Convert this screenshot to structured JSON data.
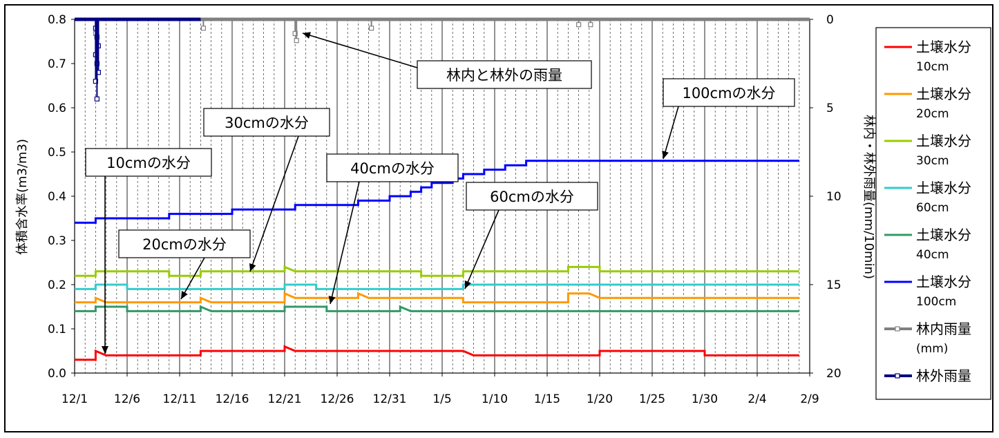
{
  "chart_data": {
    "type": "line",
    "title": "",
    "x_ticks": [
      "12/1",
      "12/6",
      "12/11",
      "12/16",
      "12/21",
      "12/26",
      "12/31",
      "1/5",
      "1/10",
      "1/15",
      "1/20",
      "1/25",
      "1/30",
      "2/4",
      "2/9"
    ],
    "x_range": [
      "12/1",
      "2/9"
    ],
    "grid": {
      "major_vertical": "every 5 days (solid)",
      "minor_vertical": "every day (dashed)",
      "horizontal": "none"
    },
    "y_left": {
      "label": "体積含水率(m3/m3)",
      "ticks": [
        "0.0",
        "0.1",
        "0.2",
        "0.3",
        "0.4",
        "0.5",
        "0.6",
        "0.7",
        "0.8"
      ],
      "range": [
        0,
        0.8
      ]
    },
    "y_right": {
      "label": "林内・林外雨量(mm/10min)",
      "ticks": [
        "0",
        "5",
        "10",
        "15",
        "20"
      ],
      "range": [
        0,
        20
      ],
      "inverted": true
    },
    "legend": {
      "position": "right",
      "items": [
        {
          "label": "土壌水分",
          "sub": "10cm",
          "color": "#ff0000"
        },
        {
          "label": "土壌水分",
          "sub": "20cm",
          "color": "#ff9900"
        },
        {
          "label": "土壌水分",
          "sub": "30cm",
          "color": "#99cc00"
        },
        {
          "label": "土壌水分",
          "sub": "60cm",
          "color": "#33cccc"
        },
        {
          "label": "土壌水分",
          "sub": "40cm",
          "color": "#339966"
        },
        {
          "label": "土壌水分",
          "sub": "100cm",
          "color": "#0000ff"
        },
        {
          "label": "林内雨量",
          "sub": "(mm)",
          "color": "#808080"
        },
        {
          "label": "林外雨量",
          "sub": "",
          "color": "#000080"
        }
      ]
    },
    "series": [
      {
        "name": "土壌水分10cm",
        "axis": "left",
        "color": "#ff0000",
        "points": [
          [
            "12/1",
            0.03
          ],
          [
            "12/3",
            0.03
          ],
          [
            "12/3",
            0.05
          ],
          [
            "12/4",
            0.04
          ],
          [
            "12/13",
            0.04
          ],
          [
            "12/13",
            0.05
          ],
          [
            "12/21",
            0.05
          ],
          [
            "12/21",
            0.06
          ],
          [
            "12/22",
            0.05
          ],
          [
            "1/7",
            0.05
          ],
          [
            "1/8",
            0.04
          ],
          [
            "1/20",
            0.04
          ],
          [
            "1/20",
            0.05
          ],
          [
            "1/30",
            0.05
          ],
          [
            "1/30",
            0.04
          ],
          [
            "2/8",
            0.04
          ]
        ]
      },
      {
        "name": "土壌水分20cm",
        "axis": "left",
        "color": "#ff9900",
        "points": [
          [
            "12/1",
            0.16
          ],
          [
            "12/3",
            0.16
          ],
          [
            "12/3",
            0.17
          ],
          [
            "12/4",
            0.16
          ],
          [
            "12/13",
            0.16
          ],
          [
            "12/13",
            0.17
          ],
          [
            "12/14",
            0.16
          ],
          [
            "12/21",
            0.16
          ],
          [
            "12/21",
            0.18
          ],
          [
            "12/22",
            0.17
          ],
          [
            "12/28",
            0.17
          ],
          [
            "12/28",
            0.18
          ],
          [
            "12/29",
            0.17
          ],
          [
            "1/7",
            0.17
          ],
          [
            "1/7",
            0.16
          ],
          [
            "1/17",
            0.16
          ],
          [
            "1/17",
            0.18
          ],
          [
            "1/19",
            0.18
          ],
          [
            "1/20",
            0.17
          ],
          [
            "2/8",
            0.17
          ]
        ]
      },
      {
        "name": "土壌水分30cm",
        "axis": "left",
        "color": "#99cc00",
        "points": [
          [
            "12/1",
            0.22
          ],
          [
            "12/3",
            0.22
          ],
          [
            "12/3",
            0.23
          ],
          [
            "12/10",
            0.23
          ],
          [
            "12/10",
            0.22
          ],
          [
            "12/13",
            0.22
          ],
          [
            "12/13",
            0.23
          ],
          [
            "12/21",
            0.23
          ],
          [
            "12/21",
            0.24
          ],
          [
            "12/22",
            0.23
          ],
          [
            "1/3",
            0.23
          ],
          [
            "1/3",
            0.22
          ],
          [
            "1/7",
            0.22
          ],
          [
            "1/7",
            0.23
          ],
          [
            "1/17",
            0.23
          ],
          [
            "1/17",
            0.24
          ],
          [
            "1/20",
            0.24
          ],
          [
            "1/20",
            0.23
          ],
          [
            "2/8",
            0.23
          ]
        ]
      },
      {
        "name": "土壌水分60cm",
        "axis": "left",
        "color": "#33cccc",
        "points": [
          [
            "12/1",
            0.19
          ],
          [
            "12/3",
            0.19
          ],
          [
            "12/3",
            0.2
          ],
          [
            "12/6",
            0.2
          ],
          [
            "12/6",
            0.19
          ],
          [
            "12/21",
            0.19
          ],
          [
            "12/21",
            0.2
          ],
          [
            "12/24",
            0.2
          ],
          [
            "12/24",
            0.19
          ],
          [
            "1/7",
            0.19
          ],
          [
            "1/7",
            0.2
          ],
          [
            "2/8",
            0.2
          ]
        ]
      },
      {
        "name": "土壌水分40cm",
        "axis": "left",
        "color": "#339966",
        "points": [
          [
            "12/1",
            0.14
          ],
          [
            "12/3",
            0.14
          ],
          [
            "12/3",
            0.15
          ],
          [
            "12/6",
            0.15
          ],
          [
            "12/6",
            0.14
          ],
          [
            "12/13",
            0.14
          ],
          [
            "12/13",
            0.15
          ],
          [
            "12/14",
            0.14
          ],
          [
            "12/21",
            0.14
          ],
          [
            "12/21",
            0.15
          ],
          [
            "12/25",
            0.15
          ],
          [
            "12/25",
            0.14
          ],
          [
            "1/1",
            0.14
          ],
          [
            "1/1",
            0.15
          ],
          [
            "1/2",
            0.14
          ],
          [
            "2/8",
            0.14
          ]
        ]
      },
      {
        "name": "土壌水分100cm",
        "axis": "left",
        "color": "#0000ff",
        "points": [
          [
            "12/1",
            0.34
          ],
          [
            "12/3",
            0.34
          ],
          [
            "12/3",
            0.35
          ],
          [
            "12/10",
            0.35
          ],
          [
            "12/10",
            0.36
          ],
          [
            "12/16",
            0.36
          ],
          [
            "12/16",
            0.37
          ],
          [
            "12/22",
            0.37
          ],
          [
            "12/22",
            0.38
          ],
          [
            "12/28",
            0.38
          ],
          [
            "12/28",
            0.39
          ],
          [
            "12/31",
            0.39
          ],
          [
            "12/31",
            0.4
          ],
          [
            "1/2",
            0.4
          ],
          [
            "1/2",
            0.41
          ],
          [
            "1/3",
            0.41
          ],
          [
            "1/3",
            0.42
          ],
          [
            "1/4",
            0.42
          ],
          [
            "1/4",
            0.43
          ],
          [
            "1/6",
            0.43
          ],
          [
            "1/6",
            0.44
          ],
          [
            "1/7",
            0.44
          ],
          [
            "1/7",
            0.45
          ],
          [
            "1/9",
            0.45
          ],
          [
            "1/9",
            0.46
          ],
          [
            "1/11",
            0.46
          ],
          [
            "1/11",
            0.47
          ],
          [
            "1/13",
            0.47
          ],
          [
            "1/13",
            0.48
          ],
          [
            "2/8",
            0.48
          ]
        ]
      },
      {
        "name": "林内雨量(mm)",
        "axis": "right",
        "color": "#808080",
        "points": [
          [
            "12/3",
            0.8
          ],
          [
            "12/3",
            1.0
          ],
          [
            "12/13",
            0.5
          ],
          [
            "12/22",
            0.8
          ],
          [
            "12/22",
            1.2
          ],
          [
            "12/29",
            0.5
          ],
          [
            "1/18",
            0.3
          ],
          [
            "1/19",
            0.3
          ]
        ]
      },
      {
        "name": "林外雨量",
        "axis": "right",
        "color": "#000080",
        "points": [
          [
            "12/3",
            0.5
          ],
          [
            "12/3",
            1.0
          ],
          [
            "12/3",
            1.5
          ],
          [
            "12/3",
            2.0
          ],
          [
            "12/3",
            2.5
          ],
          [
            "12/3",
            3.0
          ],
          [
            "12/3",
            3.5
          ],
          [
            "12/3",
            4.5
          ]
        ]
      }
    ],
    "annotations": [
      {
        "text": "林内と林外の雨量",
        "target_series": "林内雨量(mm)"
      },
      {
        "text": "100cmの水分",
        "target_series": "土壌水分100cm"
      },
      {
        "text": "30cmの水分",
        "target_series": "土壌水分30cm"
      },
      {
        "text": "10cmの水分",
        "target_series": "土壌水分10cm"
      },
      {
        "text": "40cmの水分",
        "target_series": "土壌水分40cm"
      },
      {
        "text": "60cmの水分",
        "target_series": "土壌水分60cm"
      },
      {
        "text": "20cmの水分",
        "target_series": "土壌水分20cm"
      }
    ]
  }
}
